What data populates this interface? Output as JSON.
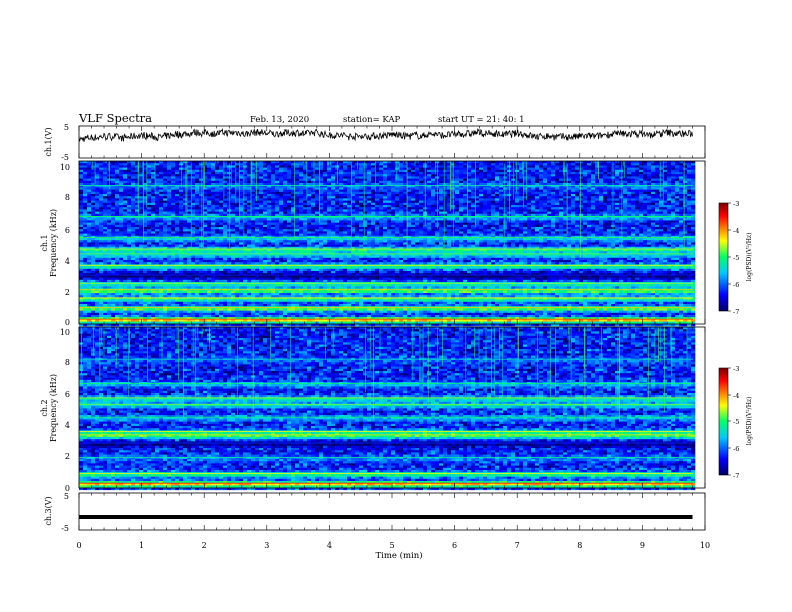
{
  "header": {
    "title": "VLF Spectra",
    "date": "Feb. 13, 2020",
    "station": "station= KAP",
    "start": "start  UT =  21: 40: 1"
  },
  "colorbar": {
    "label": "log(PSD)(V²/Hz)",
    "ticks": [
      "-3",
      "-4",
      "-5",
      "-6",
      "-7"
    ],
    "colors": [
      "#7a0000",
      "#ff0000",
      "#ffff00",
      "#00ff66",
      "#00c8ff",
      "#0000ff",
      "#000066"
    ]
  },
  "chart_data": [
    {
      "type": "line",
      "ylabel": "ch.1(V)",
      "ylim": [
        -5,
        5
      ],
      "yticks": [
        "5",
        "-5"
      ],
      "xlim": [
        0,
        10
      ],
      "note": "noisy waveform oscillating around about 1 V"
    },
    {
      "type": "heatmap",
      "ylabel_line1": "ch.1",
      "ylabel_line2": "Frequency (kHz)",
      "ylim": [
        0,
        10
      ],
      "yticks": [
        "0",
        "2",
        "4",
        "6",
        "8",
        "10"
      ],
      "xlim": [
        0,
        10
      ],
      "z_range": [
        -7,
        -3
      ],
      "bands": [
        {
          "f": 0.3,
          "level": -4.2
        },
        {
          "f": 1.0,
          "level": -4.8
        },
        {
          "f": 1.6,
          "level": -5.0
        },
        {
          "f": 2.1,
          "level": -4.8
        },
        {
          "f": 2.5,
          "level": -5.2
        },
        {
          "f": 3.0,
          "level": -6.9
        },
        {
          "f": 3.6,
          "level": -5.1
        },
        {
          "f": 4.3,
          "level": -5.4
        },
        {
          "f": 4.6,
          "level": -5.1
        },
        {
          "f": 5.3,
          "level": -5.5
        },
        {
          "f": 6.6,
          "level": -5.6
        },
        {
          "f": 8.5,
          "level": -5.9
        }
      ]
    },
    {
      "type": "heatmap",
      "ylabel_line1": "ch.2",
      "ylabel_line2": "Frequency (kHz)",
      "ylim": [
        0,
        10
      ],
      "yticks": [
        "0",
        "2",
        "4",
        "6",
        "8",
        "10"
      ],
      "xlim": [
        0,
        10
      ],
      "z_range": [
        -7,
        -3
      ],
      "bands": [
        {
          "f": 0.3,
          "level": -4.2
        },
        {
          "f": 0.9,
          "level": -5.0
        },
        {
          "f": 1.9,
          "level": -5.8
        },
        {
          "f": 2.8,
          "level": -6.9
        },
        {
          "f": 3.3,
          "level": -4.9
        },
        {
          "f": 3.5,
          "level": -5.0
        },
        {
          "f": 4.4,
          "level": -5.6
        },
        {
          "f": 5.2,
          "level": -5.3
        },
        {
          "f": 5.6,
          "level": -5.2
        },
        {
          "f": 6.5,
          "level": -5.6
        },
        {
          "f": 8.0,
          "level": -6.0
        }
      ]
    },
    {
      "type": "line",
      "ylabel": "ch.3(V)",
      "ylim": [
        -5,
        5
      ],
      "yticks": [
        "5",
        "-5"
      ],
      "xlabel": "Time (min)",
      "xlim": [
        0,
        10
      ],
      "xticks": [
        "0",
        "1",
        "2",
        "3",
        "4",
        "5",
        "6",
        "7",
        "8",
        "9",
        "10"
      ],
      "x": [
        0,
        9.8
      ],
      "y": [
        -1.5,
        -1.5
      ]
    }
  ]
}
